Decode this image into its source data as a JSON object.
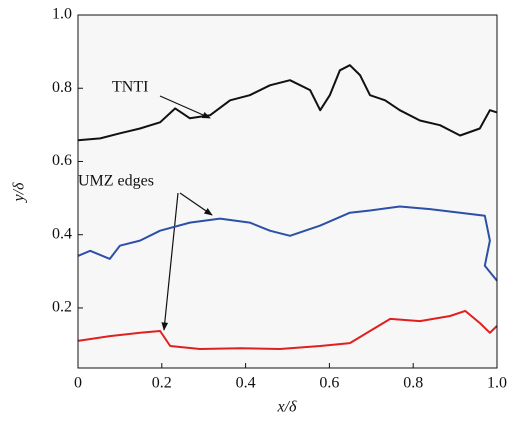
{
  "chart_data": {
    "type": "line",
    "xlabel": "x/δ",
    "ylabel": "y/δ",
    "annotations": [
      "TNTI",
      "UMZ edges"
    ],
    "xlim": [
      0,
      1
    ],
    "ylim": [
      0.036,
      1
    ],
    "xticks": [
      0,
      0.2,
      0.4,
      0.6,
      0.8,
      {
        "value": 1,
        "label": "1.0"
      }
    ],
    "yticks": [
      0.2,
      0.4,
      0.6,
      0.8,
      {
        "value": 1,
        "label": "1.0"
      }
    ],
    "series": [
      {
        "color": "#111111",
        "x": [
          0,
          0.053,
          0.1,
          0.148,
          0.196,
          0.232,
          0.267,
          0.315,
          0.363,
          0.41,
          0.458,
          0.506,
          0.554,
          0.578,
          0.601,
          0.625,
          0.649,
          0.673,
          0.697,
          0.733,
          0.768,
          0.816,
          0.864,
          0.912,
          0.959,
          0.983,
          1.0
        ],
        "values": [
          0.658,
          0.663,
          0.677,
          0.69,
          0.707,
          0.745,
          0.718,
          0.726,
          0.767,
          0.781,
          0.808,
          0.822,
          0.795,
          0.74,
          0.781,
          0.849,
          0.863,
          0.836,
          0.781,
          0.767,
          0.74,
          0.712,
          0.699,
          0.671,
          0.69,
          0.74,
          0.734
        ]
      },
      {
        "color": "#2c50a8",
        "x": [
          0,
          0.029,
          0.076,
          0.1,
          0.148,
          0.196,
          0.267,
          0.339,
          0.41,
          0.458,
          0.506,
          0.578,
          0.649,
          0.697,
          0.768,
          0.84,
          0.912,
          0.971,
          0.983,
          0.971,
          1.0
        ],
        "values": [
          0.342,
          0.356,
          0.334,
          0.37,
          0.384,
          0.411,
          0.433,
          0.444,
          0.433,
          0.411,
          0.397,
          0.425,
          0.46,
          0.466,
          0.477,
          0.47,
          0.46,
          0.452,
          0.384,
          0.315,
          0.274
        ]
      },
      {
        "color": "#e02020",
        "x": [
          0,
          0.076,
          0.148,
          0.196,
          0.22,
          0.291,
          0.387,
          0.482,
          0.578,
          0.649,
          0.697,
          0.745,
          0.816,
          0.888,
          0.924,
          0.959,
          0.983,
          1.0
        ],
        "values": [
          0.11,
          0.123,
          0.132,
          0.137,
          0.096,
          0.088,
          0.09,
          0.088,
          0.096,
          0.104,
          0.137,
          0.17,
          0.164,
          0.178,
          0.192,
          0.159,
          0.132,
          0.151
        ]
      }
    ]
  }
}
